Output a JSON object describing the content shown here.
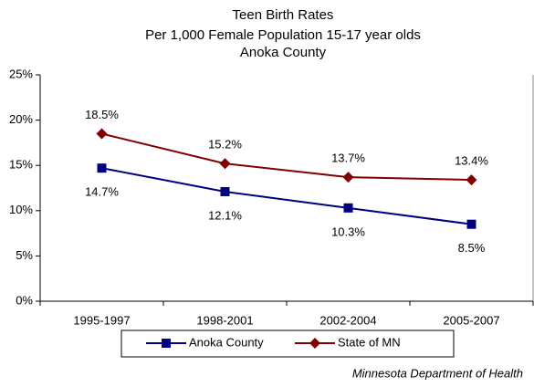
{
  "chart_data": {
    "type": "line",
    "title": "Teen Birth Rates",
    "subtitle": [
      "Per 1,000 Female Population 15-17 year olds",
      "Anoka County"
    ],
    "source": "Minnesota Department of Health",
    "categories": [
      "1995-1997",
      "1998-2001",
      "2002-2004",
      "2005-2007"
    ],
    "series": [
      {
        "name": "Anoka County",
        "color": "#000080",
        "marker": "square",
        "values": [
          14.7,
          12.1,
          10.3,
          8.5
        ],
        "value_labels": [
          "14.7%",
          "12.1%",
          "10.3%",
          "8.5%"
        ]
      },
      {
        "name": "State of MN",
        "color": "#800000",
        "marker": "diamond",
        "values": [
          18.5,
          15.2,
          13.7,
          13.4
        ],
        "value_labels": [
          "18.5%",
          "15.2%",
          "13.7%",
          "13.4%"
        ]
      }
    ],
    "ylim": [
      0,
      25
    ],
    "yticks": [
      {
        "value": 0,
        "label": "0%"
      },
      {
        "value": 5,
        "label": "5%"
      },
      {
        "value": 10,
        "label": "10%"
      },
      {
        "value": 15,
        "label": "15%"
      },
      {
        "value": 20,
        "label": "20%"
      },
      {
        "value": 25,
        "label": "25%"
      }
    ],
    "legend": "bottom"
  }
}
